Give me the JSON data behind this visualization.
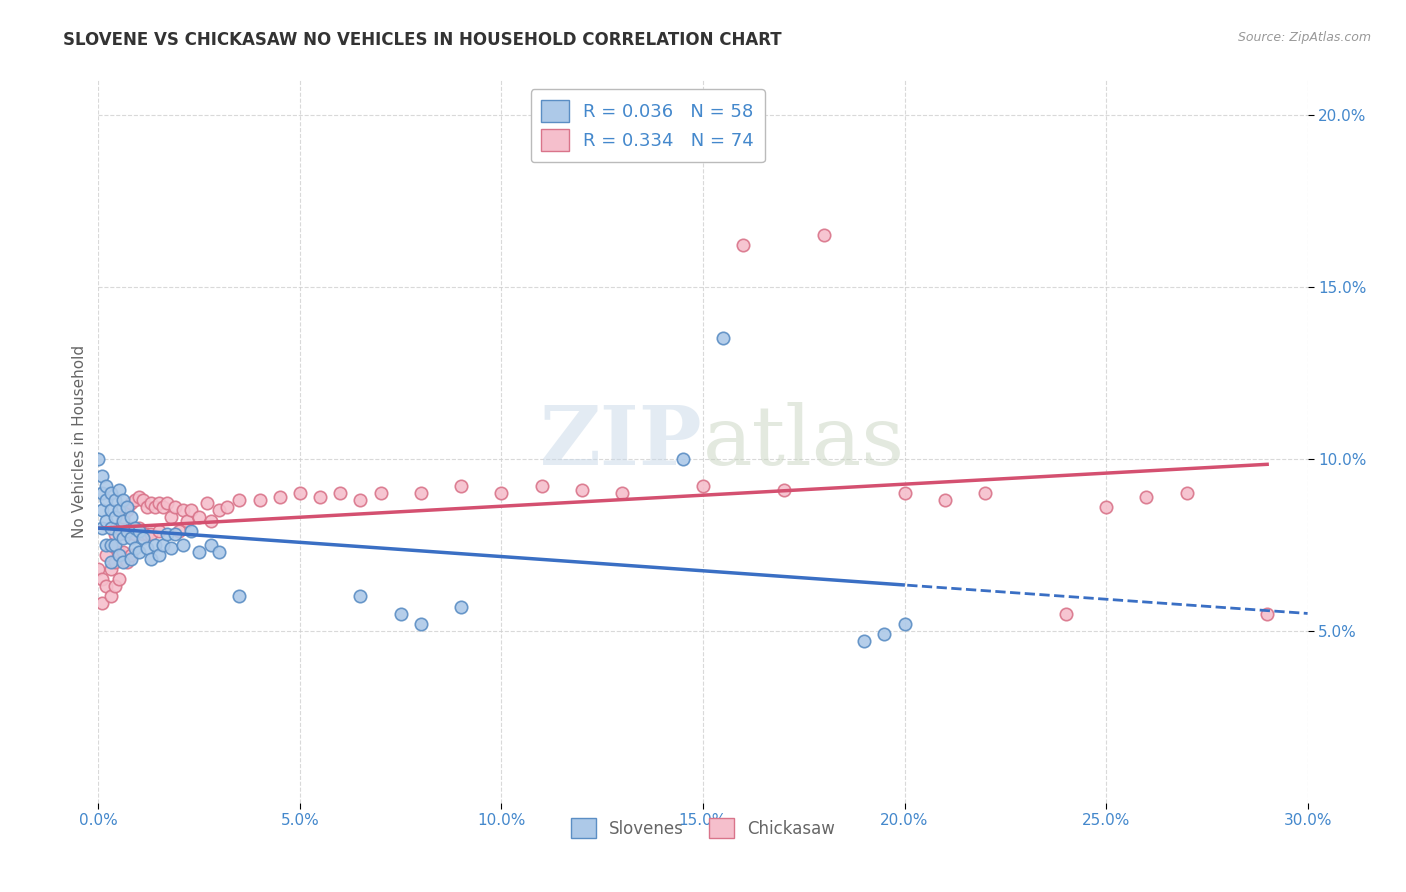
{
  "title": "SLOVENE VS CHICKASAW NO VEHICLES IN HOUSEHOLD CORRELATION CHART",
  "source": "Source: ZipAtlas.com",
  "ylabel": "No Vehicles in Household",
  "xlim": [
    0.0,
    0.3
  ],
  "ylim": [
    0.0,
    0.21
  ],
  "yticks": [
    0.05,
    0.1,
    0.15,
    0.2
  ],
  "ytick_labels": [
    "5.0%",
    "10.0%",
    "15.0%",
    "20.0%"
  ],
  "xticks": [
    0.0,
    0.05,
    0.1,
    0.15,
    0.2,
    0.25,
    0.3
  ],
  "xtick_labels": [
    "0.0%",
    "5.0%",
    "10.0%",
    "15.0%",
    "20.0%",
    "25.0%",
    "30.0%"
  ],
  "slovene_color": "#adc9e8",
  "slovene_edge_color": "#5b8ec4",
  "chickasaw_color": "#f5bfcc",
  "chickasaw_edge_color": "#d9748a",
  "slovene_line_color": "#3a6fc4",
  "chickasaw_line_color": "#d45070",
  "R_slovene": 0.036,
  "N_slovene": 58,
  "R_chickasaw": 0.334,
  "N_chickasaw": 74,
  "marker_size": 80,
  "slovene_x": [
    0.0,
    0.001,
    0.001,
    0.001,
    0.001,
    0.002,
    0.002,
    0.002,
    0.002,
    0.003,
    0.003,
    0.003,
    0.003,
    0.003,
    0.004,
    0.004,
    0.004,
    0.005,
    0.005,
    0.005,
    0.005,
    0.006,
    0.006,
    0.006,
    0.006,
    0.007,
    0.007,
    0.008,
    0.008,
    0.008,
    0.009,
    0.009,
    0.01,
    0.01,
    0.011,
    0.012,
    0.013,
    0.014,
    0.015,
    0.016,
    0.017,
    0.018,
    0.019,
    0.021,
    0.023,
    0.025,
    0.028,
    0.03,
    0.035,
    0.065,
    0.075,
    0.08,
    0.09,
    0.145,
    0.155,
    0.19,
    0.195,
    0.2
  ],
  "slovene_y": [
    0.1,
    0.095,
    0.09,
    0.085,
    0.08,
    0.092,
    0.088,
    0.082,
    0.075,
    0.09,
    0.085,
    0.08,
    0.075,
    0.07,
    0.088,
    0.083,
    0.075,
    0.091,
    0.085,
    0.078,
    0.072,
    0.088,
    0.082,
    0.077,
    0.07,
    0.086,
    0.079,
    0.083,
    0.077,
    0.071,
    0.08,
    0.074,
    0.079,
    0.073,
    0.077,
    0.074,
    0.071,
    0.075,
    0.072,
    0.075,
    0.078,
    0.074,
    0.078,
    0.075,
    0.079,
    0.073,
    0.075,
    0.073,
    0.06,
    0.06,
    0.055,
    0.052,
    0.057,
    0.1,
    0.135,
    0.047,
    0.049,
    0.052
  ],
  "chickasaw_x": [
    0.0,
    0.001,
    0.001,
    0.002,
    0.002,
    0.003,
    0.003,
    0.003,
    0.004,
    0.004,
    0.004,
    0.005,
    0.005,
    0.005,
    0.006,
    0.006,
    0.007,
    0.007,
    0.007,
    0.008,
    0.008,
    0.008,
    0.009,
    0.009,
    0.01,
    0.01,
    0.011,
    0.011,
    0.012,
    0.012,
    0.013,
    0.013,
    0.014,
    0.015,
    0.015,
    0.016,
    0.017,
    0.018,
    0.019,
    0.02,
    0.021,
    0.022,
    0.023,
    0.025,
    0.027,
    0.028,
    0.03,
    0.032,
    0.035,
    0.04,
    0.045,
    0.05,
    0.055,
    0.06,
    0.065,
    0.07,
    0.08,
    0.09,
    0.1,
    0.11,
    0.12,
    0.13,
    0.15,
    0.16,
    0.17,
    0.18,
    0.2,
    0.21,
    0.22,
    0.24,
    0.25,
    0.26,
    0.27,
    0.29
  ],
  "chickasaw_y": [
    0.068,
    0.065,
    0.058,
    0.072,
    0.063,
    0.075,
    0.068,
    0.06,
    0.078,
    0.07,
    0.063,
    0.08,
    0.073,
    0.065,
    0.083,
    0.073,
    0.085,
    0.078,
    0.07,
    0.087,
    0.08,
    0.072,
    0.088,
    0.078,
    0.089,
    0.08,
    0.088,
    0.078,
    0.086,
    0.078,
    0.087,
    0.078,
    0.086,
    0.087,
    0.079,
    0.086,
    0.087,
    0.083,
    0.086,
    0.079,
    0.085,
    0.082,
    0.085,
    0.083,
    0.087,
    0.082,
    0.085,
    0.086,
    0.088,
    0.088,
    0.089,
    0.09,
    0.089,
    0.09,
    0.088,
    0.09,
    0.09,
    0.092,
    0.09,
    0.092,
    0.091,
    0.09,
    0.092,
    0.162,
    0.091,
    0.165,
    0.09,
    0.088,
    0.09,
    0.055,
    0.086,
    0.089,
    0.09,
    0.055
  ],
  "background_color": "#ffffff",
  "grid_color": "#d0d0d0",
  "tick_color": "#4488cc",
  "label_color": "#666666",
  "title_color": "#333333"
}
